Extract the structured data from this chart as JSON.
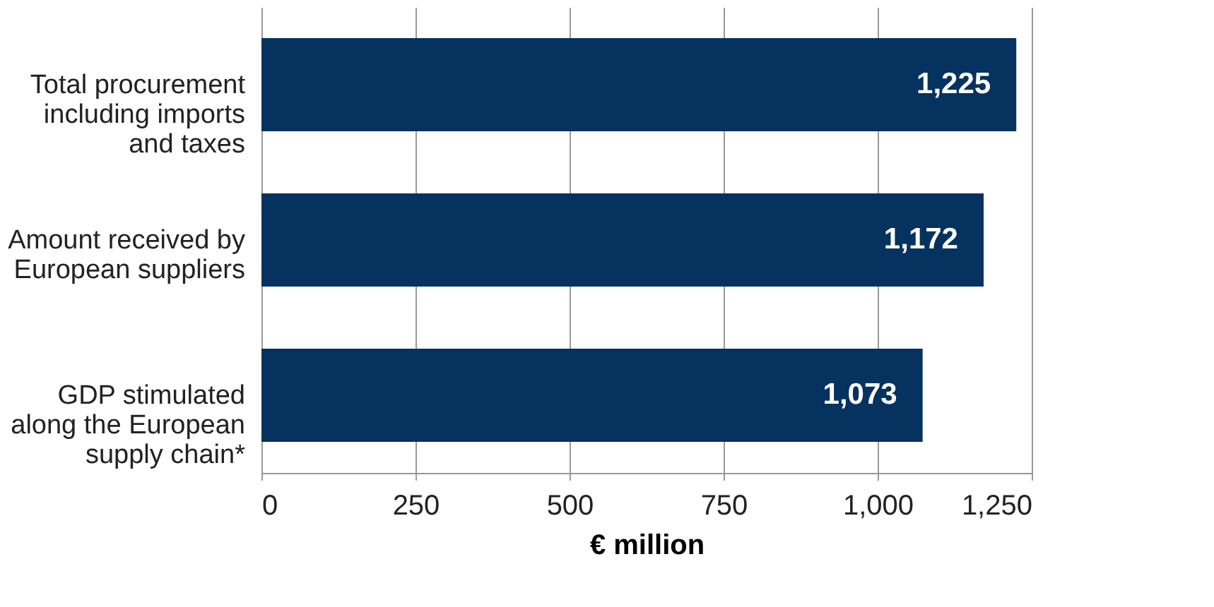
{
  "chart_data": {
    "type": "bar",
    "orientation": "horizontal",
    "xlabel": "€ million",
    "categories": [
      "Total procurement including imports and taxes",
      "Amount received by European suppliers",
      "GDP stimulated along the European supply chain*"
    ],
    "values": [
      1225,
      1172,
      1073
    ],
    "value_labels": [
      "1,225",
      "1,172",
      "1,073"
    ],
    "color": "#06325f",
    "xlim": [
      0,
      1250
    ],
    "xticks": [
      0,
      250,
      500,
      750,
      {
        "value": 1000,
        "label": "1,000"
      },
      {
        "value": 1250,
        "label": "1,250"
      }
    ],
    "grid": "x"
  }
}
